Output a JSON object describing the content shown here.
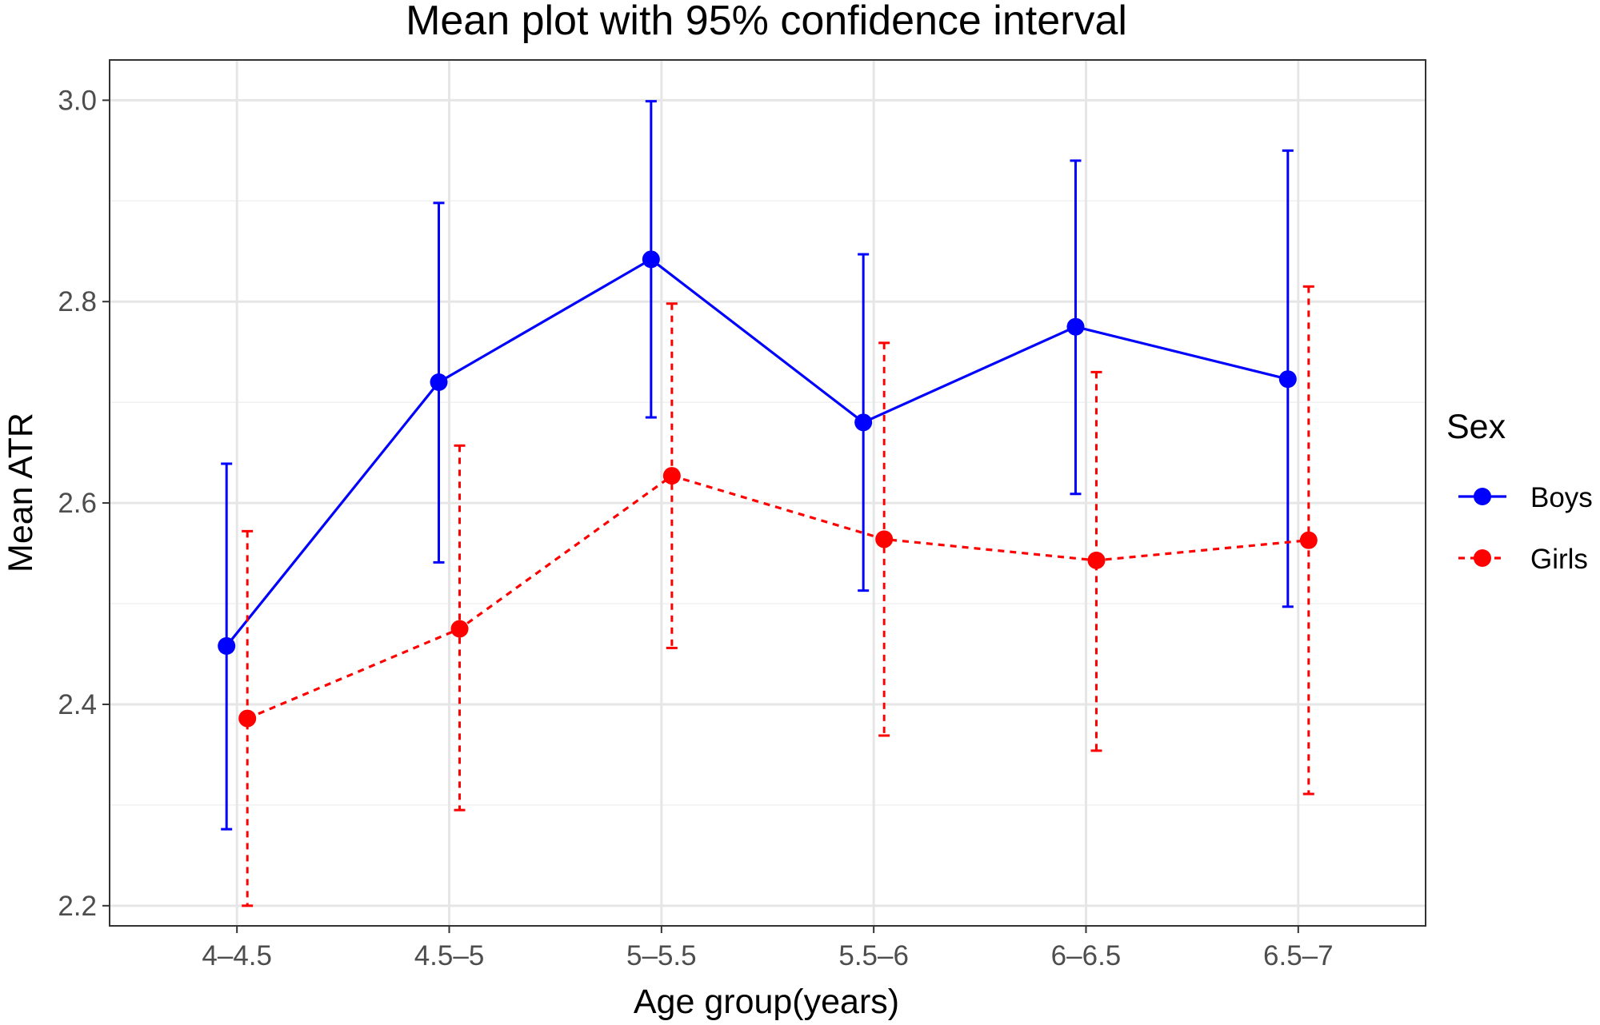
{
  "chart_data": {
    "type": "line",
    "title": "Mean plot with 95% confidence interval",
    "xlabel": "Age group(years)",
    "ylabel": "Mean ATR",
    "categories": [
      "4–4.5",
      "4.5–5",
      "5–5.5",
      "5.5–6",
      "6–6.5",
      "6.5–7"
    ],
    "ylim": [
      2.18,
      3.04
    ],
    "yticks": [
      2.2,
      2.4,
      2.6,
      2.8,
      3.0
    ],
    "ytick_labels": [
      "2.2",
      "2.4",
      "2.6",
      "2.8",
      "3.0"
    ],
    "grid": true,
    "legend": {
      "title": "Sex",
      "position": "right"
    },
    "series": [
      {
        "name": "Boys",
        "color": "#0000ff",
        "line_style": "solid",
        "values": [
          2.458,
          2.72,
          2.842,
          2.68,
          2.775,
          2.723
        ],
        "ci_lower": [
          2.276,
          2.541,
          2.685,
          2.513,
          2.609,
          2.497
        ],
        "ci_upper": [
          2.639,
          2.898,
          2.999,
          2.847,
          2.94,
          2.95
        ]
      },
      {
        "name": "Girls",
        "color": "#ff0000",
        "line_style": "dashed",
        "values": [
          2.386,
          2.475,
          2.627,
          2.564,
          2.543,
          2.563
        ],
        "ci_lower": [
          2.2,
          2.295,
          2.456,
          2.369,
          2.354,
          2.311
        ],
        "ci_upper": [
          2.572,
          2.657,
          2.798,
          2.759,
          2.73,
          2.815
        ]
      }
    ]
  }
}
